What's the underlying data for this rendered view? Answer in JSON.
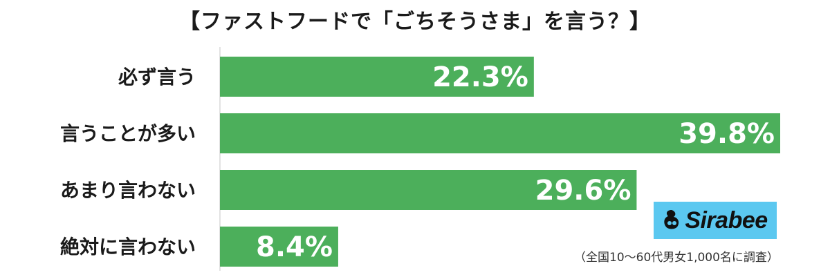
{
  "chart_data": {
    "type": "bar",
    "orientation": "horizontal",
    "title": "【ファストフードで「ごちそうさま」を言う？】",
    "categories": [
      "必ず言う",
      "言うことが多い",
      "あまり言わない",
      "絶対に言わない"
    ],
    "values": [
      22.3,
      39.8,
      29.6,
      8.4
    ],
    "value_labels": [
      "22.3%",
      "39.8%",
      "29.6%",
      "8.4%"
    ],
    "xlim": [
      0,
      40
    ],
    "bar_color": "#4caf5b",
    "grid": false,
    "legend": "none"
  },
  "logo": {
    "text": "Sirabee",
    "background": "#5bc8f0"
  },
  "footnote": "（全国10〜60代男女1,000名に調査）"
}
